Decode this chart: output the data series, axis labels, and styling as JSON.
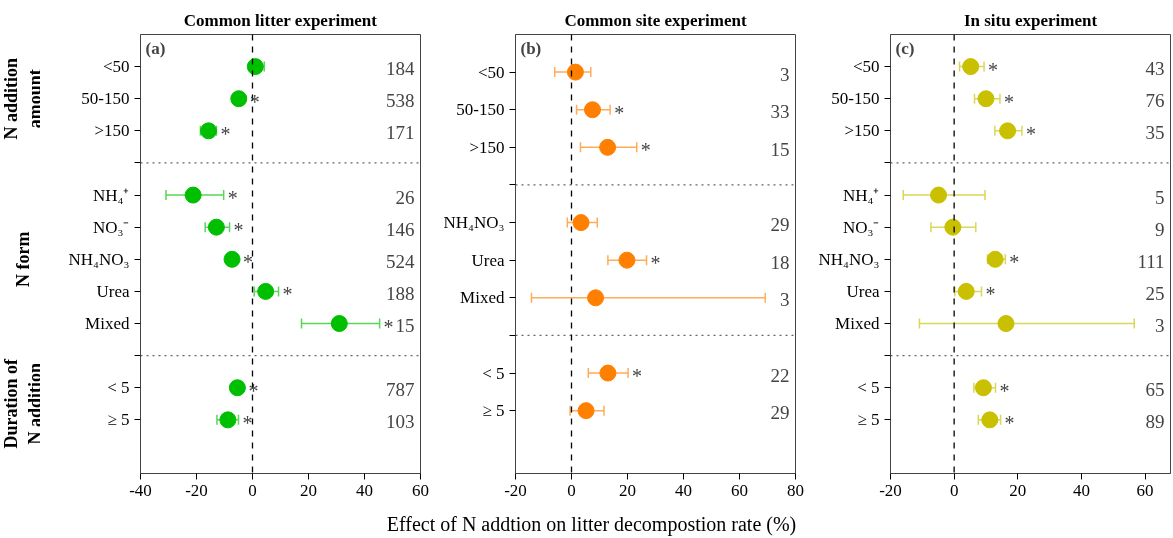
{
  "chart_data": [
    {
      "type": "scatter",
      "orientation": "horizontal",
      "title": "Common litter experiment",
      "categories": [
        "<50",
        "50-150",
        ">150",
        null,
        "NH₄⁺",
        "NO₃⁻",
        "NH₄NO₃",
        "Urea",
        "Mixed",
        null,
        "< 5",
        "≥ 5"
      ],
      "series": [
        {
          "color": "#00bf00",
          "values": [
            1.0,
            -4.9,
            -15.7,
            null,
            -21.2,
            -12.9,
            -7.3,
            4.7,
            31.0,
            null,
            -5.4,
            -8.8
          ],
          "errors": [
            [
              -1.0,
              4.2
            ],
            null,
            [
              -18.6,
              -12.9
            ],
            null,
            [
              -30.9,
              -10.3
            ],
            [
              -16.9,
              -8.2
            ],
            null,
            [
              0.6,
              9.3
            ],
            [
              17.5,
              45.4
            ],
            null,
            null,
            [
              -12.7,
              -5.0
            ]
          ],
          "value_labels": [
            null,
            "*",
            "*",
            null,
            "*",
            "*",
            "*",
            "*",
            "*",
            null,
            "*",
            "*"
          ]
        }
      ],
      "xlim": [
        -40,
        60
      ],
      "xticks": [
        -40,
        -20,
        0,
        20,
        40,
        60
      ],
      "grid": false,
      "marker": "circle",
      "ref_lines": [
        {
          "axis": "x",
          "value": 0,
          "line_style": "dashed"
        }
      ],
      "annotations": [
        "(a)",
        "N addition\namount",
        "N form",
        "Duration of\nN addition",
        "184",
        "538",
        "171",
        "26",
        "146",
        "524",
        "188",
        "15",
        "787",
        "103"
      ]
    },
    {
      "type": "scatter",
      "orientation": "horizontal",
      "title": "Common site experiment",
      "xlabel": "Effect of N addtion on litter decompostion rate (%)",
      "categories": [
        "<50",
        "50-150",
        ">150",
        null,
        "NH₄NO₃",
        "Urea",
        "Mixed",
        null,
        "< 5",
        "≥ 5"
      ],
      "series": [
        {
          "color": "#ff8000",
          "values": [
            1.4,
            7.5,
            12.9,
            null,
            3.4,
            19.8,
            8.6,
            null,
            13.0,
            5.2
          ],
          "errors": [
            [
              -6.0,
              6.9
            ],
            [
              1.8,
              13.8
            ],
            [
              3.2,
              23.3
            ],
            null,
            [
              -1.5,
              9.2
            ],
            [
              13.0,
              26.8
            ],
            [
              -14.3,
              69.2
            ],
            null,
            [
              6.0,
              20.2
            ],
            [
              -0.5,
              11.6
            ]
          ],
          "value_labels": [
            null,
            "*",
            "*",
            null,
            null,
            "*",
            null,
            null,
            "*",
            null
          ]
        }
      ],
      "xlim": [
        -20,
        80
      ],
      "xticks": [
        -20,
        0,
        20,
        40,
        60,
        80
      ],
      "grid": false,
      "marker": "circle",
      "ref_lines": [
        {
          "axis": "x",
          "value": 0,
          "line_style": "dashed"
        }
      ],
      "annotations": [
        "(b)",
        "3",
        "33",
        "15",
        "29",
        "18",
        "3",
        "22",
        "29"
      ]
    },
    {
      "type": "scatter",
      "orientation": "horizontal",
      "title": "In situ experiment",
      "categories": [
        "<50",
        "50-150",
        ">150",
        null,
        "NH₄⁺",
        "NO₃⁻",
        "NH₄NO₃",
        "Urea",
        "Mixed",
        null,
        "< 5",
        "≥ 5"
      ],
      "series": [
        {
          "color": "#c8c000",
          "values": [
            5.2,
            10.0,
            16.8,
            null,
            -4.9,
            -0.4,
            12.9,
            3.8,
            16.3,
            null,
            9.2,
            11.2
          ],
          "errors": [
            [
              1.7,
              9.4
            ],
            [
              6.4,
              14.4
            ],
            [
              12.8,
              21.3
            ],
            null,
            [
              -16.0,
              9.7
            ],
            [
              -7.3,
              6.8
            ],
            [
              10.5,
              16.1
            ],
            [
              0.2,
              8.6
            ],
            [
              -10.9,
              56.6
            ],
            null,
            [
              6.2,
              13.0
            ],
            [
              7.6,
              14.6
            ]
          ],
          "value_labels": [
            "*",
            "*",
            "*",
            null,
            null,
            null,
            "*",
            "*",
            null,
            null,
            "*",
            "*"
          ]
        }
      ],
      "xlim": [
        -20,
        68
      ],
      "xticks": [
        -20,
        0,
        20,
        40,
        60
      ],
      "grid": false,
      "marker": "circle",
      "ref_lines": [
        {
          "axis": "x",
          "value": 0,
          "line_style": "dashed"
        }
      ],
      "annotations": [
        "(c)",
        "43",
        "76",
        "35",
        "5",
        "9",
        "111",
        "25",
        "3",
        "65",
        "89"
      ]
    }
  ]
}
